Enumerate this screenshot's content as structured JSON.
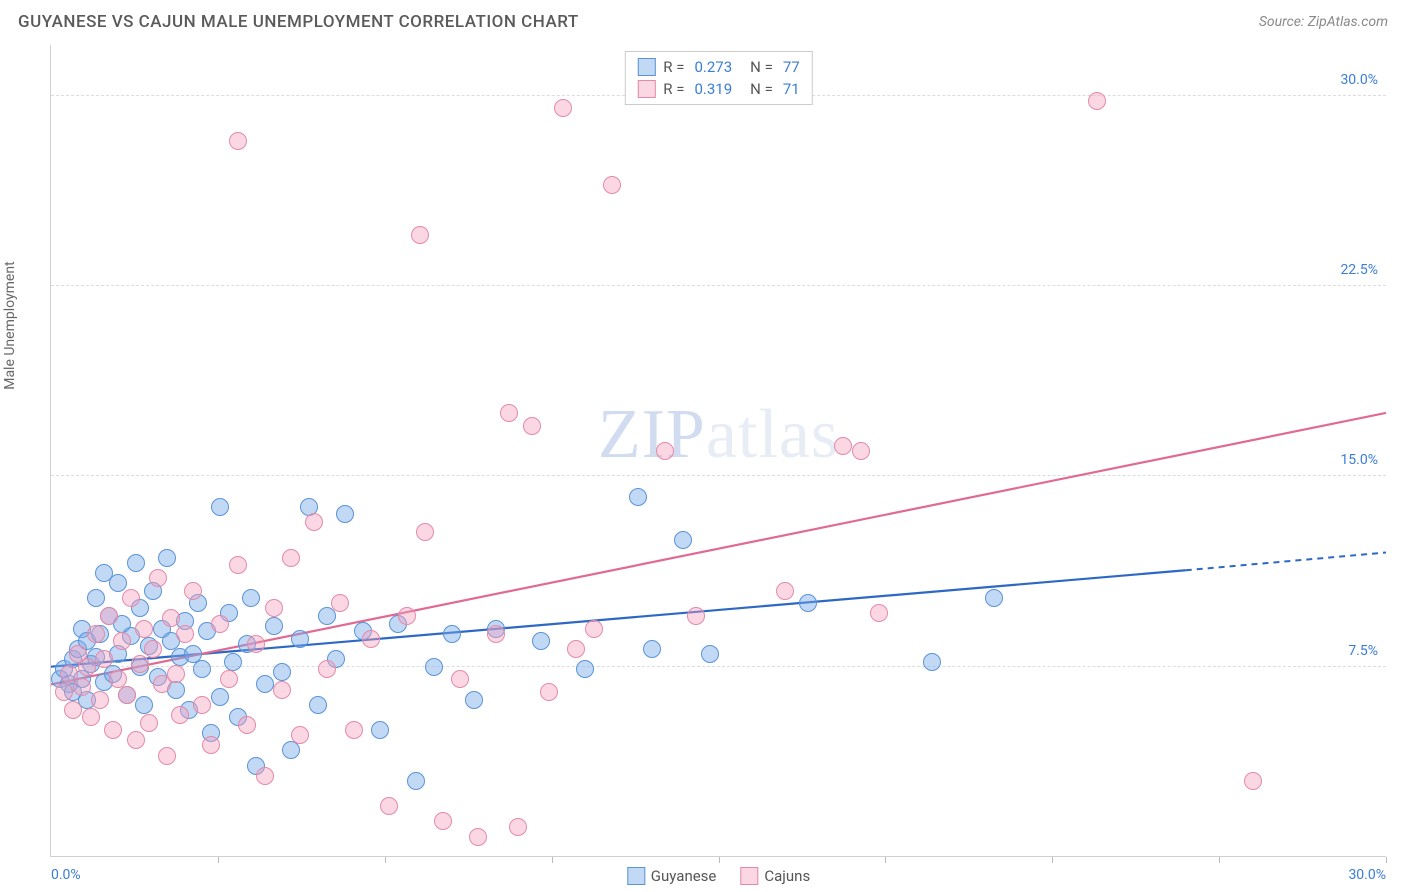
{
  "title": "GUYANESE VS CAJUN MALE UNEMPLOYMENT CORRELATION CHART",
  "source": "Source: ZipAtlas.com",
  "ylabel": "Male Unemployment",
  "watermark": {
    "bold": "ZIP",
    "rest": "atlas"
  },
  "series": [
    {
      "name": "Guyanese",
      "fill": "rgba(120,170,235,0.45)",
      "stroke": "#5a93d6",
      "line_color": "#2d68c4",
      "R": "0.273",
      "N": "77",
      "trend": {
        "x1": 0,
        "y1": 7.5,
        "x2_solid": 25.5,
        "y2_solid": 11.3,
        "x2_dash": 30,
        "y2_dash": 12.0
      }
    },
    {
      "name": "Cajuns",
      "fill": "rgba(245,160,190,0.42)",
      "stroke": "#e48aa8",
      "line_color": "#e06a92",
      "R": "0.319",
      "N": "71",
      "trend": {
        "x1": 0,
        "y1": 6.8,
        "x2_solid": 30,
        "y2_solid": 17.5,
        "x2_dash": 30,
        "y2_dash": 17.5
      }
    }
  ],
  "axes": {
    "x": {
      "min": 0,
      "max": 30,
      "label_min": "0.0%",
      "label_max": "30.0%",
      "ticks": [
        3.75,
        7.5,
        11.25,
        15,
        18.75,
        22.5,
        26.25,
        30
      ]
    },
    "y": {
      "min": 0,
      "max": 32,
      "grid": [
        {
          "v": 7.5,
          "label": "7.5%"
        },
        {
          "v": 15.0,
          "label": "15.0%"
        },
        {
          "v": 22.5,
          "label": "22.5%"
        },
        {
          "v": 30.0,
          "label": "30.0%"
        }
      ]
    }
  },
  "marker_radius": 9,
  "points": {
    "Guyanese": [
      [
        0.2,
        7.0
      ],
      [
        0.3,
        7.4
      ],
      [
        0.4,
        6.8
      ],
      [
        0.5,
        7.8
      ],
      [
        0.5,
        6.5
      ],
      [
        0.6,
        8.2
      ],
      [
        0.7,
        7.0
      ],
      [
        0.7,
        9.0
      ],
      [
        0.8,
        8.5
      ],
      [
        0.8,
        6.2
      ],
      [
        0.9,
        7.6
      ],
      [
        1.0,
        10.2
      ],
      [
        1.0,
        7.9
      ],
      [
        1.1,
        8.8
      ],
      [
        1.2,
        6.9
      ],
      [
        1.2,
        11.2
      ],
      [
        1.3,
        9.5
      ],
      [
        1.4,
        7.2
      ],
      [
        1.5,
        10.8
      ],
      [
        1.5,
        8.0
      ],
      [
        1.6,
        9.2
      ],
      [
        1.7,
        6.4
      ],
      [
        1.8,
        8.7
      ],
      [
        1.9,
        11.6
      ],
      [
        2.0,
        7.5
      ],
      [
        2.0,
        9.8
      ],
      [
        2.1,
        6.0
      ],
      [
        2.2,
        8.3
      ],
      [
        2.3,
        10.5
      ],
      [
        2.4,
        7.1
      ],
      [
        2.5,
        9.0
      ],
      [
        2.6,
        11.8
      ],
      [
        2.7,
        8.5
      ],
      [
        2.8,
        6.6
      ],
      [
        2.9,
        7.9
      ],
      [
        3.0,
        9.3
      ],
      [
        3.1,
        5.8
      ],
      [
        3.2,
        8.0
      ],
      [
        3.3,
        10.0
      ],
      [
        3.4,
        7.4
      ],
      [
        3.5,
        8.9
      ],
      [
        3.6,
        4.9
      ],
      [
        3.8,
        6.3
      ],
      [
        4.0,
        9.6
      ],
      [
        4.1,
        7.7
      ],
      [
        4.2,
        5.5
      ],
      [
        4.4,
        8.4
      ],
      [
        4.5,
        10.2
      ],
      [
        4.6,
        3.6
      ],
      [
        4.8,
        6.8
      ],
      [
        5.0,
        9.1
      ],
      [
        5.2,
        7.3
      ],
      [
        5.4,
        4.2
      ],
      [
        5.6,
        8.6
      ],
      [
        5.8,
        13.8
      ],
      [
        6.0,
        6.0
      ],
      [
        6.2,
        9.5
      ],
      [
        6.4,
        7.8
      ],
      [
        6.6,
        13.5
      ],
      [
        7.0,
        8.9
      ],
      [
        7.4,
        5.0
      ],
      [
        7.8,
        9.2
      ],
      [
        8.2,
        3.0
      ],
      [
        8.6,
        7.5
      ],
      [
        9.0,
        8.8
      ],
      [
        9.5,
        6.2
      ],
      [
        10.0,
        9.0
      ],
      [
        11.0,
        8.5
      ],
      [
        12.0,
        7.4
      ],
      [
        13.2,
        14.2
      ],
      [
        13.5,
        8.2
      ],
      [
        14.2,
        12.5
      ],
      [
        14.8,
        8.0
      ],
      [
        17.0,
        10.0
      ],
      [
        19.8,
        7.7
      ],
      [
        21.2,
        10.2
      ],
      [
        3.8,
        13.8
      ]
    ],
    "Cajuns": [
      [
        0.3,
        6.5
      ],
      [
        0.4,
        7.2
      ],
      [
        0.5,
        5.8
      ],
      [
        0.6,
        8.0
      ],
      [
        0.7,
        6.7
      ],
      [
        0.8,
        7.5
      ],
      [
        0.9,
        5.5
      ],
      [
        1.0,
        8.8
      ],
      [
        1.1,
        6.2
      ],
      [
        1.2,
        7.8
      ],
      [
        1.3,
        9.5
      ],
      [
        1.4,
        5.0
      ],
      [
        1.5,
        7.0
      ],
      [
        1.6,
        8.5
      ],
      [
        1.7,
        6.4
      ],
      [
        1.8,
        10.2
      ],
      [
        1.9,
        4.6
      ],
      [
        2.0,
        7.6
      ],
      [
        2.1,
        9.0
      ],
      [
        2.2,
        5.3
      ],
      [
        2.3,
        8.2
      ],
      [
        2.4,
        11.0
      ],
      [
        2.5,
        6.8
      ],
      [
        2.6,
        4.0
      ],
      [
        2.7,
        9.4
      ],
      [
        2.8,
        7.2
      ],
      [
        2.9,
        5.6
      ],
      [
        3.0,
        8.8
      ],
      [
        3.2,
        10.5
      ],
      [
        3.4,
        6.0
      ],
      [
        3.6,
        4.4
      ],
      [
        3.8,
        9.2
      ],
      [
        4.0,
        7.0
      ],
      [
        4.2,
        11.5
      ],
      [
        4.4,
        5.2
      ],
      [
        4.6,
        8.4
      ],
      [
        4.8,
        3.2
      ],
      [
        5.0,
        9.8
      ],
      [
        5.2,
        6.6
      ],
      [
        5.4,
        11.8
      ],
      [
        5.6,
        4.8
      ],
      [
        5.9,
        13.2
      ],
      [
        6.2,
        7.4
      ],
      [
        6.5,
        10.0
      ],
      [
        6.8,
        5.0
      ],
      [
        7.2,
        8.6
      ],
      [
        7.6,
        2.0
      ],
      [
        8.0,
        9.5
      ],
      [
        8.4,
        12.8
      ],
      [
        8.8,
        1.4
      ],
      [
        9.2,
        7.0
      ],
      [
        9.6,
        0.8
      ],
      [
        10.0,
        8.8
      ],
      [
        10.3,
        17.5
      ],
      [
        10.5,
        1.2
      ],
      [
        10.8,
        17.0
      ],
      [
        11.2,
        6.5
      ],
      [
        11.5,
        29.5
      ],
      [
        11.8,
        8.2
      ],
      [
        12.2,
        9.0
      ],
      [
        12.6,
        26.5
      ],
      [
        4.2,
        28.2
      ],
      [
        8.3,
        24.5
      ],
      [
        13.8,
        16.0
      ],
      [
        14.5,
        9.5
      ],
      [
        16.5,
        10.5
      ],
      [
        17.8,
        16.2
      ],
      [
        18.2,
        16.0
      ],
      [
        18.6,
        9.6
      ],
      [
        23.5,
        29.8
      ],
      [
        27.0,
        3.0
      ]
    ]
  }
}
